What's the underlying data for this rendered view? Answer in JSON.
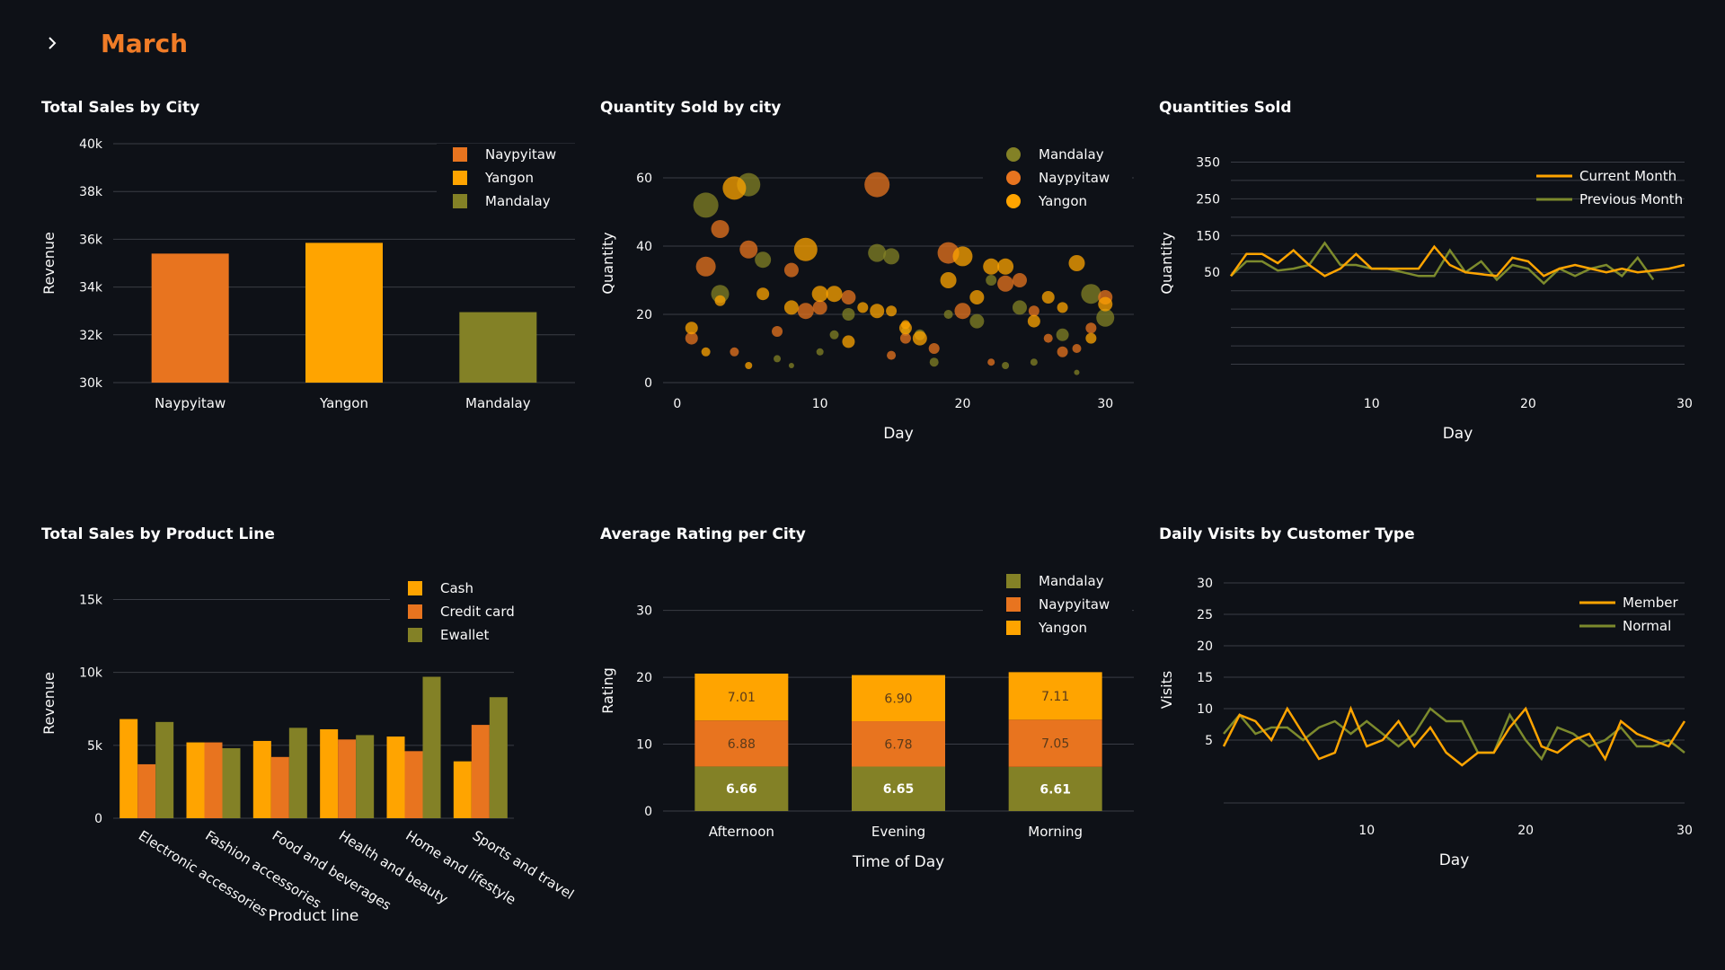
{
  "page": {
    "title": "March"
  },
  "colors": {
    "orange": "#e8741f",
    "yellow": "#ffa400",
    "olive": "#838126",
    "olive_line": "#7c8a2d",
    "bg": "#0e1117",
    "grid": "#3a3d45",
    "text": "#fafafa"
  },
  "charts": {
    "sales_city": {
      "title": "Total Sales by City",
      "chart_data": {
        "type": "bar",
        "title": "Total Sales by City",
        "ylabel": "Revenue",
        "categories": [
          "Naypyitaw",
          "Yangon",
          "Mandalay"
        ],
        "values": [
          35400,
          35850,
          32950
        ],
        "ylim": [
          30000,
          40000
        ],
        "yticks": [
          "30k",
          "32k",
          "34k",
          "36k",
          "38k",
          "40k"
        ],
        "legend": [
          "Naypyitaw",
          "Yangon",
          "Mandalay"
        ]
      }
    },
    "qty_city": {
      "title": "Quantity Sold by city",
      "chart_data": {
        "type": "scatter",
        "title": "Quantity Sold by city",
        "xlabel": "Day",
        "ylabel": "Quantity",
        "xlim": [
          -1,
          32
        ],
        "ylim": [
          0,
          70
        ],
        "xticks": [
          0,
          10,
          20,
          30
        ],
        "yticks": [
          0,
          20,
          40,
          60
        ],
        "series": [
          {
            "name": "Mandalay",
            "points": [
              [
                2,
                52,
                14
              ],
              [
                5,
                58,
                13
              ],
              [
                3,
                26,
                10
              ],
              [
                6,
                36,
                9
              ],
              [
                7,
                7,
                4
              ],
              [
                8,
                5,
                3
              ],
              [
                11,
                14,
                5
              ],
              [
                12,
                20,
                7
              ],
              [
                14,
                38,
                10
              ],
              [
                15,
                37,
                9
              ],
              [
                17,
                14,
                6
              ],
              [
                19,
                20,
                5
              ],
              [
                21,
                18,
                8
              ],
              [
                23,
                5,
                4
              ],
              [
                24,
                22,
                8
              ],
              [
                25,
                6,
                4
              ],
              [
                27,
                14,
                7
              ],
              [
                28,
                3,
                3
              ],
              [
                29,
                26,
                11
              ],
              [
                30,
                19,
                10
              ],
              [
                18,
                6,
                5
              ],
              [
                16,
                15,
                5
              ],
              [
                22,
                30,
                6
              ],
              [
                10,
                9,
                4
              ]
            ]
          },
          {
            "name": "Naypyitaw",
            "points": [
              [
                1,
                13,
                7
              ],
              [
                2,
                34,
                11
              ],
              [
                3,
                45,
                10
              ],
              [
                4,
                9,
                5
              ],
              [
                5,
                39,
                10
              ],
              [
                7,
                15,
                6
              ],
              [
                8,
                33,
                8
              ],
              [
                9,
                21,
                9
              ],
              [
                10,
                22,
                8
              ],
              [
                12,
                25,
                8
              ],
              [
                14,
                58,
                14
              ],
              [
                15,
                8,
                5
              ],
              [
                16,
                13,
                6
              ],
              [
                18,
                10,
                6
              ],
              [
                20,
                21,
                9
              ],
              [
                22,
                6,
                4
              ],
              [
                23,
                29,
                9
              ],
              [
                24,
                30,
                8
              ],
              [
                25,
                21,
                6
              ],
              [
                26,
                13,
                5
              ],
              [
                27,
                9,
                6
              ],
              [
                28,
                10,
                5
              ],
              [
                29,
                16,
                6
              ],
              [
                30,
                25,
                8
              ],
              [
                19,
                38,
                12
              ]
            ]
          },
          {
            "name": "Yangon",
            "points": [
              [
                1,
                16,
                7
              ],
              [
                2,
                9,
                5
              ],
              [
                3,
                24,
                6
              ],
              [
                4,
                57,
                13
              ],
              [
                5,
                5,
                4
              ],
              [
                6,
                26,
                7
              ],
              [
                8,
                22,
                8
              ],
              [
                9,
                39,
                13
              ],
              [
                10,
                26,
                9
              ],
              [
                11,
                26,
                9
              ],
              [
                12,
                12,
                7
              ],
              [
                13,
                22,
                6
              ],
              [
                14,
                21,
                8
              ],
              [
                15,
                21,
                6
              ],
              [
                16,
                16,
                7
              ],
              [
                17,
                13,
                8
              ],
              [
                19,
                30,
                9
              ],
              [
                20,
                37,
                11
              ],
              [
                21,
                25,
                8
              ],
              [
                22,
                34,
                9
              ],
              [
                23,
                34,
                9
              ],
              [
                25,
                18,
                7
              ],
              [
                26,
                25,
                7
              ],
              [
                27,
                22,
                6
              ],
              [
                28,
                35,
                9
              ],
              [
                29,
                13,
                6
              ],
              [
                30,
                23,
                8
              ],
              [
                16,
                17,
                5
              ]
            ]
          }
        ],
        "legend": [
          "Mandalay",
          "Naypyitaw",
          "Yangon"
        ]
      }
    },
    "qty_sold": {
      "title": "Quantities Sold",
      "chart_data": {
        "type": "line",
        "title": "Quantities Sold",
        "xlabel": "Day",
        "ylabel": "Quantity",
        "xlim": [
          1,
          30
        ],
        "ylim": [
          -250,
          400
        ],
        "xticks": [
          10,
          20,
          30
        ],
        "yticks": [
          50,
          150,
          250,
          350
        ],
        "series": [
          {
            "name": "Current Month",
            "x": [
              1,
              2,
              3,
              4,
              5,
              6,
              7,
              8,
              9,
              10,
              11,
              12,
              13,
              14,
              15,
              16,
              17,
              18,
              19,
              20,
              21,
              22,
              23,
              24,
              25,
              26,
              27,
              28,
              29,
              30
            ],
            "values": [
              40,
              100,
              100,
              75,
              110,
              70,
              40,
              60,
              100,
              60,
              60,
              60,
              60,
              120,
              70,
              50,
              45,
              40,
              90,
              80,
              40,
              60,
              70,
              60,
              50,
              60,
              50,
              55,
              60,
              70
            ]
          },
          {
            "name": "Previous Month",
            "x": [
              1,
              2,
              3,
              4,
              5,
              6,
              7,
              8,
              9,
              10,
              11,
              12,
              13,
              14,
              15,
              16,
              17,
              18,
              19,
              20,
              21,
              22,
              23,
              24,
              25,
              26,
              27,
              28
            ],
            "values": [
              40,
              80,
              80,
              55,
              60,
              70,
              130,
              70,
              70,
              60,
              60,
              50,
              40,
              40,
              110,
              50,
              80,
              30,
              70,
              60,
              20,
              60,
              40,
              60,
              70,
              40,
              90,
              30
            ]
          }
        ],
        "legend": [
          "Current Month",
          "Previous Month"
        ]
      }
    },
    "sales_product": {
      "title": "Total Sales by Product Line",
      "chart_data": {
        "type": "bar",
        "title": "Total Sales by Product Line",
        "xlabel": "Product line",
        "ylabel": "Revenue",
        "categories": [
          "Electronic accessories",
          "Fashion accessories",
          "Food and beverages",
          "Health and beauty",
          "Home and lifestyle",
          "Sports and travel"
        ],
        "series": [
          {
            "name": "Cash",
            "values": [
              6800,
              5200,
              5300,
              6100,
              5600,
              3900
            ]
          },
          {
            "name": "Credit card",
            "values": [
              3700,
              5200,
              4200,
              5400,
              4600,
              6400
            ]
          },
          {
            "name": "Ewallet",
            "values": [
              6600,
              4800,
              6200,
              5700,
              9700,
              8300
            ]
          }
        ],
        "ylim": [
          0,
          17000
        ],
        "yticks": [
          "0",
          "5k",
          "10k",
          "15k"
        ],
        "legend": [
          "Cash",
          "Credit card",
          "Ewallet"
        ]
      }
    },
    "avg_rating": {
      "title": "Average Rating per City",
      "chart_data": {
        "type": "bar",
        "stacked": true,
        "title": "Average Rating per City",
        "xlabel": "Time of Day",
        "ylabel": "Rating",
        "categories": [
          "Afternoon",
          "Evening",
          "Morning"
        ],
        "series": [
          {
            "name": "Mandalay",
            "values": [
              6.66,
              6.65,
              6.61
            ],
            "labels": [
              "6.66",
              "6.65",
              "6.61"
            ]
          },
          {
            "name": "Naypyitaw",
            "values": [
              6.88,
              6.78,
              7.05
            ],
            "labels": [
              "6.88",
              "6.78",
              "7.05"
            ]
          },
          {
            "name": "Yangon",
            "values": [
              7.01,
              6.9,
              7.11
            ],
            "labels": [
              "7.01",
              "6.90",
              "7.11"
            ]
          }
        ],
        "ylim": [
          0,
          36
        ],
        "yticks": [
          0,
          10,
          20,
          30
        ],
        "legend": [
          "Mandalay",
          "Naypyitaw",
          "Yangon"
        ]
      }
    },
    "daily_visits": {
      "title": "Daily Visits by Customer Type",
      "chart_data": {
        "type": "line",
        "title": "Daily Visits by Customer Type",
        "xlabel": "Day",
        "ylabel": "Visits",
        "xlim": [
          1,
          30
        ],
        "ylim": [
          -6,
          32
        ],
        "xticks": [
          10,
          20,
          30
        ],
        "yticks": [
          5,
          10,
          15,
          20,
          25,
          30
        ],
        "series": [
          {
            "name": "Member",
            "x": [
              1,
              2,
              3,
              4,
              5,
              6,
              7,
              8,
              9,
              10,
              11,
              12,
              13,
              14,
              15,
              16,
              17,
              18,
              19,
              20,
              21,
              22,
              23,
              24,
              25,
              26,
              27,
              28,
              29,
              30
            ],
            "values": [
              4,
              9,
              8,
              5,
              10,
              6,
              2,
              3,
              10,
              4,
              5,
              8,
              4,
              7,
              3,
              1,
              3,
              3,
              7,
              10,
              4,
              3,
              5,
              6,
              2,
              8,
              6,
              5,
              4,
              8
            ]
          },
          {
            "name": "Normal",
            "x": [
              1,
              2,
              3,
              4,
              5,
              6,
              7,
              8,
              9,
              10,
              11,
              12,
              13,
              14,
              15,
              16,
              17,
              18,
              19,
              20,
              21,
              22,
              23,
              24,
              25,
              26,
              27,
              28,
              29,
              30
            ],
            "values": [
              6,
              9,
              6,
              7,
              7,
              5,
              7,
              8,
              6,
              8,
              6,
              4,
              6,
              10,
              8,
              8,
              3,
              3,
              9,
              5,
              2,
              7,
              6,
              4,
              5,
              7,
              4,
              4,
              5,
              3
            ]
          }
        ],
        "legend": [
          "Member",
          "Normal"
        ]
      }
    }
  }
}
